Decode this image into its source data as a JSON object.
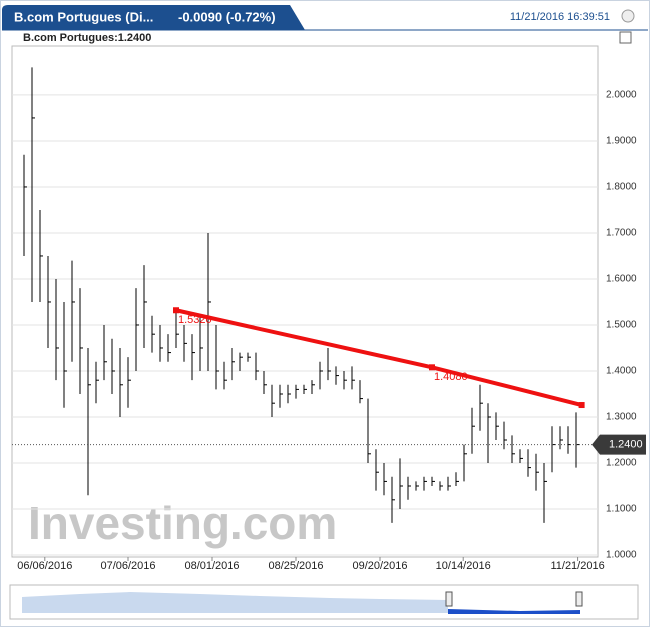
{
  "chart_data": {
    "type": "hlc",
    "header_title": "B.com Portugues (Di...",
    "header_change": "-0.0090 (-0.72%)",
    "header_time": "11/21/2016 16:39:51",
    "legend_label": "B.com Portugues:1.2400",
    "watermark": "Investing.com",
    "last_value": 1.24,
    "last_label": "1.2400",
    "ylim": [
      0.9957,
      2.102
    ],
    "yticks": [
      {
        "value": 1,
        "label": "1.0000"
      },
      {
        "value": 1.1,
        "label": "1.1000"
      },
      {
        "value": 1.2,
        "label": "1.2000"
      },
      {
        "value": 1.3,
        "label": "1.3000"
      },
      {
        "value": 1.4,
        "label": "1.4000"
      },
      {
        "value": 1.5,
        "label": "1.5000"
      },
      {
        "value": 1.6,
        "label": "1.6000"
      },
      {
        "value": 1.7,
        "label": "1.7000"
      },
      {
        "value": 1.8,
        "label": "1.8000"
      },
      {
        "value": 1.9,
        "label": "1.9000"
      },
      {
        "value": 2,
        "label": "2.0000"
      }
    ],
    "xlim": [
      -0.5,
      69.5
    ],
    "xticks": [
      {
        "value": 2.6,
        "label": "06/06/2016"
      },
      {
        "value": 13,
        "label": "07/06/2016"
      },
      {
        "value": 23.5,
        "label": "08/01/2016"
      },
      {
        "value": 34,
        "label": "08/25/2016"
      },
      {
        "value": 44.5,
        "label": "09/20/2016"
      },
      {
        "value": 54.9,
        "label": "10/14/2016"
      },
      {
        "value": 69.2,
        "label": "11/21/2016"
      }
    ],
    "series": [
      {
        "name": "B.com Portugues",
        "color": "#000000",
        "high": [
          1.87,
          2.06,
          1.75,
          1.65,
          1.6,
          1.55,
          1.64,
          1.58,
          1.45,
          1.42,
          1.5,
          1.47,
          1.45,
          1.43,
          1.58,
          1.63,
          1.52,
          1.5,
          1.48,
          1.53,
          1.5,
          1.48,
          1.52,
          1.7,
          1.5,
          1.42,
          1.45,
          1.44,
          1.44,
          1.44,
          1.4,
          1.37,
          1.37,
          1.37,
          1.37,
          1.37,
          1.38,
          1.42,
          1.45,
          1.41,
          1.4,
          1.41,
          1.38,
          1.34,
          1.23,
          1.2,
          1.17,
          1.21,
          1.17,
          1.16,
          1.17,
          1.17,
          1.16,
          1.17,
          1.18,
          1.24,
          1.32,
          1.37,
          1.33,
          1.31,
          1.29,
          1.26,
          1.23,
          1.23,
          1.22,
          1.2,
          1.28,
          1.28,
          1.28,
          1.31
        ],
        "low": [
          1.65,
          1.55,
          1.55,
          1.45,
          1.38,
          1.32,
          1.42,
          1.35,
          1.13,
          1.33,
          1.38,
          1.35,
          1.3,
          1.32,
          1.4,
          1.45,
          1.44,
          1.42,
          1.42,
          1.45,
          1.42,
          1.38,
          1.4,
          1.4,
          1.36,
          1.36,
          1.38,
          1.4,
          1.42,
          1.38,
          1.35,
          1.3,
          1.32,
          1.33,
          1.34,
          1.35,
          1.35,
          1.36,
          1.38,
          1.37,
          1.36,
          1.36,
          1.33,
          1.2,
          1.14,
          1.13,
          1.07,
          1.1,
          1.12,
          1.14,
          1.14,
          1.15,
          1.14,
          1.14,
          1.15,
          1.16,
          1.22,
          1.27,
          1.2,
          1.25,
          1.23,
          1.2,
          1.2,
          1.17,
          1.14,
          1.07,
          1.18,
          1.23,
          1.22,
          1.19
        ],
        "close": [
          1.8,
          1.95,
          1.65,
          1.55,
          1.45,
          1.4,
          1.55,
          1.45,
          1.37,
          1.38,
          1.42,
          1.4,
          1.37,
          1.38,
          1.5,
          1.55,
          1.48,
          1.45,
          1.44,
          1.48,
          1.46,
          1.44,
          1.45,
          1.55,
          1.4,
          1.38,
          1.42,
          1.43,
          1.43,
          1.4,
          1.37,
          1.33,
          1.35,
          1.35,
          1.36,
          1.36,
          1.37,
          1.4,
          1.4,
          1.39,
          1.38,
          1.38,
          1.34,
          1.22,
          1.18,
          1.16,
          1.12,
          1.15,
          1.15,
          1.15,
          1.16,
          1.16,
          1.15,
          1.15,
          1.16,
          1.22,
          1.28,
          1.33,
          1.3,
          1.28,
          1.25,
          1.22,
          1.21,
          1.19,
          1.18,
          1.16,
          1.24,
          1.25,
          1.24,
          1.24
        ]
      }
    ],
    "trendline": {
      "color": "#ee1111",
      "x": [
        19,
        51,
        69.7
      ],
      "y": [
        1.532,
        1.408,
        1.326
      ],
      "labels": [
        "1.5320",
        "1.4080"
      ]
    }
  }
}
